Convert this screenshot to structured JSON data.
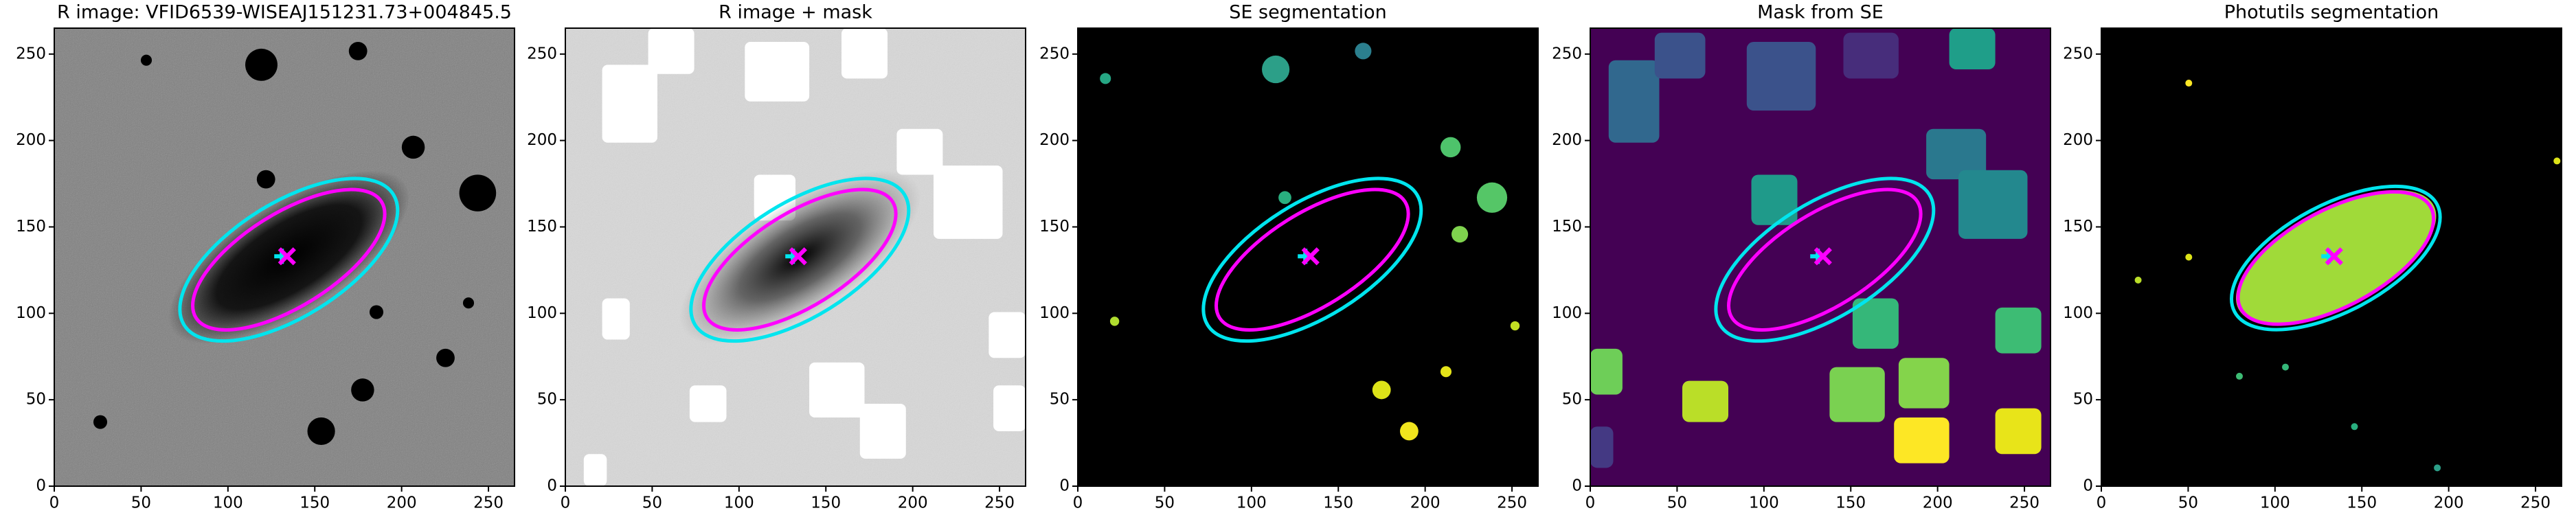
{
  "chart_data": [
    {
      "type": "image",
      "title": "R image: VFID6539-WISEAJ151231.73+004845.5",
      "background": "#808080",
      "xlim": [
        0,
        265
      ],
      "ylim": [
        0,
        265
      ],
      "xticks": [
        0,
        50,
        100,
        150,
        200,
        250
      ],
      "yticks": [
        0,
        50,
        100,
        150,
        200,
        250
      ],
      "ellipses": [
        {
          "color": "#00e5ee",
          "x": 135,
          "y": 131,
          "width": 142,
          "height": 66,
          "angle": 32
        },
        {
          "color": "#ff00ff",
          "x": 135,
          "y": 131,
          "width": 126,
          "height": 54,
          "angle": 32
        }
      ],
      "markers": [
        {
          "marker": "+",
          "color": "#00e5ee",
          "x": 131,
          "y": 133
        },
        {
          "marker": "x",
          "color": "#ff00ff",
          "x": 134,
          "y": 133
        }
      ]
    },
    {
      "type": "image",
      "title": "R image + mask",
      "background": "#d8d8d8",
      "xlim": [
        0,
        265
      ],
      "ylim": [
        0,
        265
      ],
      "xticks": [
        0,
        50,
        100,
        150,
        200,
        250
      ],
      "yticks": [
        0,
        50,
        100,
        150,
        200,
        250
      ],
      "ellipses": [
        {
          "color": "#00e5ee",
          "x": 135,
          "y": 131,
          "width": 142,
          "height": 66,
          "angle": 32
        },
        {
          "color": "#ff00ff",
          "x": 135,
          "y": 131,
          "width": 126,
          "height": 54,
          "angle": 32
        }
      ],
      "markers": [
        {
          "marker": "+",
          "color": "#00e5ee",
          "x": 131,
          "y": 133
        },
        {
          "marker": "x",
          "color": "#ff00ff",
          "x": 134,
          "y": 133
        }
      ]
    },
    {
      "type": "image",
      "title": "SE segmentation",
      "background": "#000000",
      "xlim": [
        0,
        265
      ],
      "ylim": [
        0,
        265
      ],
      "xticks": [
        0,
        50,
        100,
        150,
        200,
        250
      ],
      "yticks": [
        0,
        50,
        100,
        150,
        200,
        250
      ],
      "ellipses": [
        {
          "color": "#00e5ee",
          "x": 135,
          "y": 131,
          "width": 142,
          "height": 66,
          "angle": 32
        },
        {
          "color": "#ff00ff",
          "x": 135,
          "y": 131,
          "width": 126,
          "height": 54,
          "angle": 32
        }
      ],
      "markers": [
        {
          "marker": "+",
          "color": "#00e5ee",
          "x": 131,
          "y": 133
        },
        {
          "marker": "x",
          "color": "#ff00ff",
          "x": 134,
          "y": 133
        }
      ]
    },
    {
      "type": "image",
      "title": "Mask from SE",
      "background": "#440154",
      "xlim": [
        0,
        265
      ],
      "ylim": [
        0,
        265
      ],
      "xticks": [
        0,
        50,
        100,
        150,
        200,
        250
      ],
      "yticks": [
        0,
        50,
        100,
        150,
        200,
        250
      ],
      "ellipses": [
        {
          "color": "#00e5ee",
          "x": 135,
          "y": 131,
          "width": 142,
          "height": 66,
          "angle": 32
        },
        {
          "color": "#ff00ff",
          "x": 135,
          "y": 131,
          "width": 126,
          "height": 54,
          "angle": 32
        }
      ],
      "markers": [
        {
          "marker": "+",
          "color": "#00e5ee",
          "x": 131,
          "y": 133
        },
        {
          "marker": "x",
          "color": "#ff00ff",
          "x": 134,
          "y": 133
        }
      ]
    },
    {
      "type": "image",
      "title": "Photutils segmentation",
      "background": "#000000",
      "xlim": [
        0,
        265
      ],
      "ylim": [
        0,
        265
      ],
      "xticks": [
        0,
        50,
        100,
        150,
        200,
        250
      ],
      "yticks": [
        0,
        50,
        100,
        150,
        200,
        250
      ],
      "ellipses": [
        {
          "color": "#00e5ee",
          "x": 135,
          "y": 132,
          "width": 132,
          "height": 62,
          "angle": 28
        },
        {
          "color": "#ff00ff",
          "x": 135,
          "y": 132,
          "width": 124,
          "height": 56,
          "angle": 28
        }
      ],
      "markers": [
        {
          "marker": "+",
          "color": "#00e5ee",
          "x": 131,
          "y": 133
        },
        {
          "marker": "x",
          "color": "#ff00ff",
          "x": 134,
          "y": 133
        }
      ]
    }
  ]
}
